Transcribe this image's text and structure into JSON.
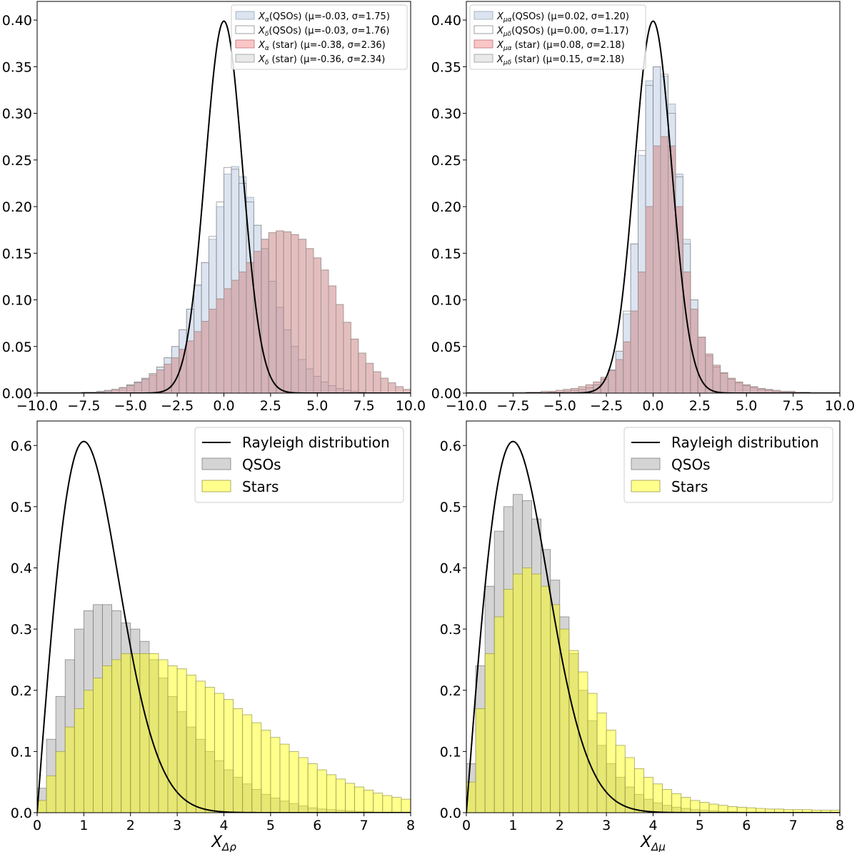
{
  "chart_data": [
    {
      "id": "top-left",
      "type": "histogram",
      "xlim": [
        -10,
        10
      ],
      "ylim": [
        0,
        0.42
      ],
      "xticks": [
        -10,
        -7.5,
        -5,
        -2.5,
        0,
        2.5,
        5,
        7.5,
        10
      ],
      "xtick_labels": [
        "−10.0",
        "−7.5",
        "−5.0",
        "−2.5",
        "0.0",
        "2.5",
        "5.0",
        "7.5",
        "10.0"
      ],
      "yticks": [
        0,
        0.05,
        0.1,
        0.15,
        0.2,
        0.25,
        0.3,
        0.35,
        0.4
      ],
      "ytick_labels": [
        "0.00",
        "0.05",
        "0.10",
        "0.15",
        "0.20",
        "0.25",
        "0.30",
        "0.35",
        "0.40"
      ],
      "xlabel": "",
      "bin_start": -10,
      "bin_width": 0.4,
      "series": [
        {
          "name": "Xα QSOs",
          "legend_main": "X",
          "legend_sub": "α",
          "legend_rest": "(QSOs) (μ=-0.03, σ=1.75)",
          "fill": "#b0c4de",
          "opacity": 0.45,
          "stroke": "#9aa7b5",
          "values": [
            0,
            0,
            0,
            0,
            0,
            0,
            0.001,
            0.001,
            0.002,
            0.003,
            0.004,
            0.006,
            0.009,
            0.012,
            0.016,
            0.02,
            0.028,
            0.038,
            0.05,
            0.068,
            0.09,
            0.115,
            0.14,
            0.165,
            0.2,
            0.235,
            0.243,
            0.232,
            0.21,
            0.18,
            0.155,
            0.12,
            0.092,
            0.068,
            0.05,
            0.036,
            0.026,
            0.018,
            0.012,
            0.008,
            0.005,
            0.003,
            0.002,
            0.001,
            0,
            0,
            0,
            0,
            0,
            0
          ]
        },
        {
          "name": "Xδ QSOs",
          "legend_main": "X",
          "legend_sub": "δ",
          "legend_rest": "(QSOs) (μ=-0.03, σ=1.76)",
          "fill": "#ffffff",
          "opacity": 0.0,
          "stroke": "#888888",
          "values": [
            0,
            0,
            0,
            0,
            0,
            0,
            0.001,
            0.001,
            0.002,
            0.003,
            0.004,
            0.006,
            0.009,
            0.012,
            0.016,
            0.021,
            0.028,
            0.038,
            0.05,
            0.068,
            0.09,
            0.116,
            0.14,
            0.168,
            0.205,
            0.242,
            0.24,
            0.225,
            0.205,
            0.18,
            0.155,
            0.12,
            0.092,
            0.068,
            0.05,
            0.036,
            0.026,
            0.018,
            0.012,
            0.008,
            0.005,
            0.003,
            0.002,
            0.001,
            0,
            0,
            0,
            0,
            0,
            0
          ]
        },
        {
          "name": "Xα star",
          "legend_main": "X",
          "legend_sub": "α",
          "legend_rest": " (star) (μ=-0.38, σ=2.36)",
          "fill": "#f08080",
          "opacity": 0.45,
          "stroke": "#c07070",
          "values": [
            0,
            0,
            0,
            0,
            0,
            0,
            0,
            0,
            0.001,
            0.002,
            0.004,
            0.006,
            0.008,
            0.011,
            0.015,
            0.02,
            0.025,
            0.031,
            0.038,
            0.047,
            0.056,
            0.066,
            0.077,
            0.09,
            0.101,
            0.112,
            0.121,
            0.13,
            0.14,
            0.152,
            0.165,
            0.172,
            0.174,
            0.173,
            0.17,
            0.165,
            0.155,
            0.145,
            0.132,
            0.115,
            0.095,
            0.076,
            0.058,
            0.043,
            0.032,
            0.023,
            0.016,
            0.011,
            0.007,
            0.004
          ]
        },
        {
          "name": "Xδ star",
          "legend_main": "X",
          "legend_sub": "δ",
          "legend_rest": " (star) (μ=-0.36, σ=2.34)",
          "fill": "#a9a9a9",
          "opacity": 0.25,
          "stroke": "#999999",
          "values": [
            0,
            0,
            0,
            0,
            0,
            0,
            0,
            0,
            0.001,
            0.002,
            0.004,
            0.006,
            0.008,
            0.011,
            0.015,
            0.02,
            0.025,
            0.031,
            0.038,
            0.047,
            0.056,
            0.066,
            0.077,
            0.09,
            0.101,
            0.112,
            0.121,
            0.13,
            0.14,
            0.152,
            0.165,
            0.172,
            0.174,
            0.173,
            0.17,
            0.165,
            0.155,
            0.145,
            0.132,
            0.115,
            0.095,
            0.076,
            0.058,
            0.043,
            0.032,
            0.023,
            0.016,
            0.011,
            0.007,
            0.004
          ]
        }
      ],
      "curve": {
        "type": "gaussian",
        "mu": 0,
        "sigma": 1,
        "name": "Gaussian"
      },
      "legend": {
        "placement": "top-right",
        "size": "small"
      }
    },
    {
      "id": "top-right",
      "type": "histogram",
      "xlim": [
        -10,
        10
      ],
      "ylim": [
        0,
        0.42
      ],
      "xticks": [
        -10,
        -7.5,
        -5,
        -2.5,
        0,
        2.5,
        5,
        7.5,
        10
      ],
      "xtick_labels": [
        "−10.0",
        "−7.5",
        "−5.0",
        "−2.5",
        "0.0",
        "2.5",
        "5.0",
        "7.5",
        "10.0"
      ],
      "yticks": [
        0,
        0.05,
        0.1,
        0.15,
        0.2,
        0.25,
        0.3,
        0.35,
        0.4
      ],
      "ytick_labels": [
        "0.00",
        "0.05",
        "0.10",
        "0.15",
        "0.20",
        "0.25",
        "0.30",
        "0.35",
        "0.40"
      ],
      "xlabel": "",
      "bin_start": -10,
      "bin_width": 0.4,
      "series": [
        {
          "name": "Xμα QSOs",
          "legend_main": "X",
          "legend_sub": "μα",
          "legend_rest": "(QSOs) (μ=0.02, σ=1.20)",
          "fill": "#b0c4de",
          "opacity": 0.45,
          "stroke": "#9aa7b5",
          "values": [
            0,
            0,
            0,
            0,
            0,
            0,
            0,
            0,
            0,
            0,
            0,
            0.001,
            0.001,
            0.002,
            0.003,
            0.004,
            0.006,
            0.009,
            0.015,
            0.025,
            0.045,
            0.085,
            0.16,
            0.255,
            0.335,
            0.35,
            0.34,
            0.31,
            0.235,
            0.165,
            0.1,
            0.06,
            0.04,
            0.028,
            0.021,
            0.015,
            0.011,
            0.008,
            0.006,
            0.004,
            0.003,
            0.002,
            0.001,
            0.001,
            0,
            0,
            0,
            0,
            0,
            0
          ]
        },
        {
          "name": "Xμδ QSOs",
          "legend_main": "X",
          "legend_sub": "μδ",
          "legend_rest": "(QSOs) (μ=0.00, σ=1.17)",
          "fill": "#ffffff",
          "opacity": 0.0,
          "stroke": "#888888",
          "values": [
            0,
            0,
            0,
            0,
            0,
            0,
            0,
            0,
            0,
            0,
            0,
            0.001,
            0.001,
            0.002,
            0.003,
            0.004,
            0.006,
            0.009,
            0.015,
            0.025,
            0.045,
            0.088,
            0.16,
            0.26,
            0.33,
            0.35,
            0.342,
            0.3,
            0.232,
            0.16,
            0.1,
            0.06,
            0.04,
            0.028,
            0.021,
            0.015,
            0.011,
            0.008,
            0.006,
            0.004,
            0.003,
            0.002,
            0.001,
            0.001,
            0,
            0,
            0,
            0,
            0,
            0
          ]
        },
        {
          "name": "Xμα star",
          "legend_main": "X",
          "legend_sub": "μα",
          "legend_rest": " (star) (μ=0.08, σ=2.18)",
          "fill": "#f08080",
          "opacity": 0.45,
          "stroke": "#c07070",
          "values": [
            0,
            0,
            0,
            0,
            0,
            0,
            0,
            0,
            0.001,
            0.001,
            0.002,
            0.002,
            0.003,
            0.004,
            0.005,
            0.007,
            0.009,
            0.012,
            0.017,
            0.024,
            0.036,
            0.055,
            0.088,
            0.13,
            0.2,
            0.265,
            0.275,
            0.265,
            0.2,
            0.13,
            0.09,
            0.06,
            0.042,
            0.03,
            0.022,
            0.016,
            0.012,
            0.009,
            0.007,
            0.005,
            0.004,
            0.003,
            0.002,
            0.002,
            0.001,
            0.001,
            0,
            0,
            0,
            0
          ]
        },
        {
          "name": "Xμδ star",
          "legend_main": "X",
          "legend_sub": "μδ",
          "legend_rest": " (star) (μ=0.15, σ=2.18)",
          "fill": "#a9a9a9",
          "opacity": 0.25,
          "stroke": "#999999",
          "values": [
            0,
            0,
            0,
            0,
            0,
            0,
            0,
            0,
            0.001,
            0.001,
            0.002,
            0.002,
            0.003,
            0.004,
            0.005,
            0.007,
            0.009,
            0.012,
            0.017,
            0.024,
            0.036,
            0.055,
            0.088,
            0.13,
            0.2,
            0.265,
            0.275,
            0.265,
            0.2,
            0.13,
            0.09,
            0.06,
            0.042,
            0.03,
            0.022,
            0.016,
            0.012,
            0.009,
            0.007,
            0.005,
            0.004,
            0.003,
            0.002,
            0.002,
            0.001,
            0.001,
            0,
            0,
            0,
            0
          ]
        }
      ],
      "curve": {
        "type": "gaussian",
        "mu": 0,
        "sigma": 1,
        "name": "Gaussian"
      },
      "legend": {
        "placement": "top-left",
        "size": "small"
      }
    },
    {
      "id": "bottom-left",
      "type": "histogram",
      "xlim": [
        0,
        8
      ],
      "ylim": [
        0,
        0.64
      ],
      "xticks": [
        0,
        1,
        2,
        3,
        4,
        5,
        6,
        7,
        8
      ],
      "xtick_labels": [
        "0",
        "1",
        "2",
        "3",
        "4",
        "5",
        "6",
        "7",
        "8"
      ],
      "yticks": [
        0,
        0.1,
        0.2,
        0.3,
        0.4,
        0.5,
        0.6
      ],
      "ytick_labels": [
        "0.0",
        "0.1",
        "0.2",
        "0.3",
        "0.4",
        "0.5",
        "0.6"
      ],
      "xlabel_main": "X",
      "xlabel_sub": "Δρ",
      "bin_start": 0,
      "bin_width": 0.2,
      "series": [
        {
          "name": "QSOs",
          "legend_label": "QSOs",
          "fill": "#a9a9a9",
          "opacity": 0.5,
          "stroke": "#808080",
          "values": [
            0.04,
            0.12,
            0.19,
            0.25,
            0.3,
            0.33,
            0.34,
            0.34,
            0.33,
            0.31,
            0.3,
            0.28,
            0.25,
            0.22,
            0.19,
            0.165,
            0.14,
            0.12,
            0.1,
            0.085,
            0.07,
            0.058,
            0.047,
            0.038,
            0.03,
            0.024,
            0.019,
            0.015,
            0.011,
            0.008,
            0.006,
            0.005,
            0.004,
            0.003,
            0.002,
            0.002,
            0.001,
            0.001,
            0.001,
            0.001
          ]
        },
        {
          "name": "Stars",
          "legend_label": "Stars",
          "fill": "#ffff00",
          "opacity": 0.45,
          "stroke": "#9a9a50",
          "values": [
            0.02,
            0.06,
            0.1,
            0.14,
            0.17,
            0.2,
            0.22,
            0.24,
            0.25,
            0.26,
            0.26,
            0.26,
            0.26,
            0.25,
            0.24,
            0.235,
            0.225,
            0.215,
            0.205,
            0.195,
            0.185,
            0.17,
            0.16,
            0.147,
            0.135,
            0.123,
            0.112,
            0.1,
            0.09,
            0.08,
            0.07,
            0.062,
            0.055,
            0.048,
            0.042,
            0.037,
            0.032,
            0.028,
            0.025,
            0.022
          ]
        }
      ],
      "curve": {
        "type": "rayleigh",
        "sigma": 1,
        "name": "Rayleigh distribution",
        "legend_label": "Rayleigh distribution"
      },
      "legend": {
        "placement": "top-right",
        "size": "large"
      }
    },
    {
      "id": "bottom-right",
      "type": "histogram",
      "xlim": [
        0,
        8
      ],
      "ylim": [
        0,
        0.64
      ],
      "xticks": [
        0,
        1,
        2,
        3,
        4,
        5,
        6,
        7,
        8
      ],
      "xtick_labels": [
        "0",
        "1",
        "2",
        "3",
        "4",
        "5",
        "6",
        "7",
        "8"
      ],
      "yticks": [
        0,
        0.1,
        0.2,
        0.3,
        0.4,
        0.5,
        0.6
      ],
      "ytick_labels": [
        "0.0",
        "0.1",
        "0.2",
        "0.3",
        "0.4",
        "0.5",
        "0.6"
      ],
      "xlabel_main": "X",
      "xlabel_sub": "Δμ",
      "bin_start": 0,
      "bin_width": 0.2,
      "series": [
        {
          "name": "QSOs",
          "legend_label": "QSOs",
          "fill": "#a9a9a9",
          "opacity": 0.5,
          "stroke": "#808080",
          "values": [
            0.08,
            0.24,
            0.37,
            0.46,
            0.5,
            0.52,
            0.51,
            0.48,
            0.43,
            0.38,
            0.32,
            0.26,
            0.2,
            0.15,
            0.11,
            0.08,
            0.058,
            0.042,
            0.03,
            0.022,
            0.016,
            0.012,
            0.009,
            0.007,
            0.005,
            0.004,
            0.003,
            0.002,
            0.002,
            0.001,
            0.001,
            0.001,
            0,
            0,
            0,
            0,
            0,
            0,
            0,
            0
          ]
        },
        {
          "name": "Stars",
          "legend_label": "Stars",
          "fill": "#ffff00",
          "opacity": 0.45,
          "stroke": "#9a9a50",
          "values": [
            0.05,
            0.17,
            0.26,
            0.32,
            0.365,
            0.39,
            0.4,
            0.39,
            0.37,
            0.34,
            0.3,
            0.265,
            0.23,
            0.195,
            0.163,
            0.135,
            0.11,
            0.09,
            0.072,
            0.058,
            0.047,
            0.038,
            0.031,
            0.025,
            0.02,
            0.017,
            0.014,
            0.012,
            0.01,
            0.009,
            0.008,
            0.007,
            0.006,
            0.006,
            0.005,
            0.005,
            0.005,
            0.004,
            0.004,
            0.004
          ]
        }
      ],
      "curve": {
        "type": "rayleigh",
        "sigma": 1,
        "name": "Rayleigh distribution",
        "legend_label": "Rayleigh distribution"
      },
      "legend": {
        "placement": "top-right",
        "size": "large"
      }
    }
  ]
}
